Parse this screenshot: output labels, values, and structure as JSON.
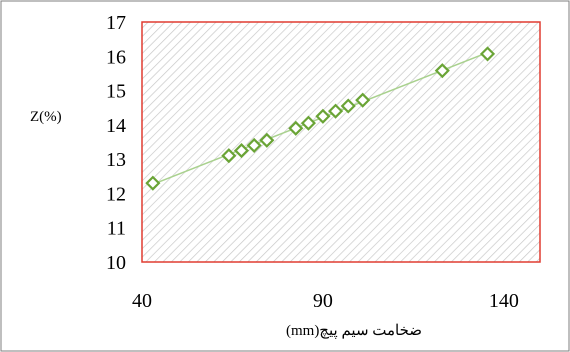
{
  "chart_data": {
    "type": "scatter",
    "title": "",
    "xlabel": "ضخامت سیم پیچ(mm)",
    "ylabel": "Z(%)",
    "xlim": [
      40,
      150
    ],
    "ylim": [
      10,
      17
    ],
    "x_ticks": [
      "40",
      "90",
      "140"
    ],
    "y_ticks": [
      "10",
      "11",
      "12",
      "13",
      "14",
      "15",
      "16",
      "17"
    ],
    "grid": false,
    "plot_background": "diagonal-hatch",
    "trendline": true,
    "colors": {
      "marker": "#6aa436",
      "trendline": "#a9d18e",
      "plot_border": "#e03c31",
      "outer_border": "#7f7f7f",
      "hatch": "#c8c8c8"
    },
    "series": [
      {
        "marker": "diamond-open",
        "points": [
          [
            43,
            12.3
          ],
          [
            64,
            13.1
          ],
          [
            67.5,
            13.25
          ],
          [
            71,
            13.4
          ],
          [
            74.5,
            13.55
          ],
          [
            82.5,
            13.9
          ],
          [
            86,
            14.05
          ],
          [
            90,
            14.25
          ],
          [
            93.5,
            14.4
          ],
          [
            97,
            14.55
          ],
          [
            101,
            14.72
          ],
          [
            123,
            15.58
          ],
          [
            135.5,
            16.07
          ]
        ]
      }
    ]
  }
}
